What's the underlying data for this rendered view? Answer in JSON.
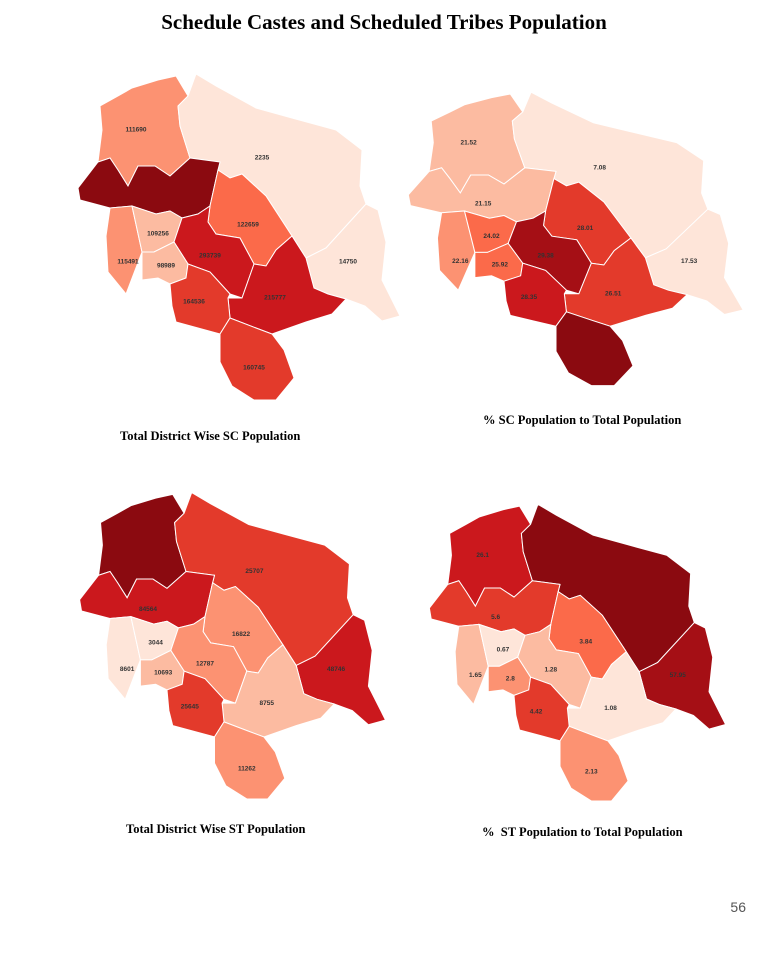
{
  "title": "Schedule Castes and Scheduled Tribes Population",
  "page_number": "56",
  "palette": [
    "#fee5d9",
    "#fcbba1",
    "#fc9272",
    "#fb6a4a",
    "#e33a2b",
    "#cb181d",
    "#a50f15",
    "#8b0a10"
  ],
  "maps": [
    {
      "id": "sc-total",
      "caption": "Total District Wise SC Population",
      "districts": [
        {
          "district": "Chamba",
          "value": "111690",
          "level": 2
        },
        {
          "district": "Lahaul & Spiti",
          "value": "2235",
          "level": 0
        },
        {
          "district": "Kangra",
          "value": "",
          "level": 7
        },
        {
          "district": "Kullu",
          "value": "122659",
          "level": 3
        },
        {
          "district": "Kinnaur",
          "value": "14750",
          "level": 0
        },
        {
          "district": "Una",
          "value": "115491",
          "level": 2
        },
        {
          "district": "Hamirpur",
          "value": "109256",
          "level": 1
        },
        {
          "district": "Mandi",
          "value": "293739",
          "level": 5
        },
        {
          "district": "Bilaspur",
          "value": "98989",
          "level": 1
        },
        {
          "district": "Shimla",
          "value": "215777",
          "level": 5
        },
        {
          "district": "Solan",
          "value": "164536",
          "level": 4
        },
        {
          "district": "Sirmaur",
          "value": "160745",
          "level": 4
        }
      ]
    },
    {
      "id": "sc-percent",
      "caption": "% SC Population to Total Population",
      "districts": [
        {
          "district": "Chamba",
          "value": "21.52",
          "level": 1
        },
        {
          "district": "Lahaul & Spiti",
          "value": "7.08",
          "level": 0
        },
        {
          "district": "Kangra",
          "value": "21.15",
          "level": 1
        },
        {
          "district": "Kullu",
          "value": "28.01",
          "level": 4
        },
        {
          "district": "Kinnaur",
          "value": "17.53",
          "level": 0
        },
        {
          "district": "Una",
          "value": "22.16",
          "level": 2
        },
        {
          "district": "Hamirpur",
          "value": "24.02",
          "level": 3
        },
        {
          "district": "Mandi",
          "value": "29.38",
          "level": 6
        },
        {
          "district": "Bilaspur",
          "value": "25.92",
          "level": 3
        },
        {
          "district": "Shimla",
          "value": "26.51",
          "level": 4
        },
        {
          "district": "Solan",
          "value": "28.35",
          "level": 5
        },
        {
          "district": "Sirmaur",
          "value": "",
          "level": 7
        }
      ]
    },
    {
      "id": "st-total",
      "caption": "Total District Wise ST Population",
      "districts": [
        {
          "district": "Chamba",
          "value": "",
          "level": 7
        },
        {
          "district": "Lahaul & Spiti",
          "value": "25707",
          "level": 4
        },
        {
          "district": "Kangra",
          "value": "84564",
          "level": 5
        },
        {
          "district": "Kullu",
          "value": "16822",
          "level": 2
        },
        {
          "district": "Kinnaur",
          "value": "48746",
          "level": 5
        },
        {
          "district": "Una",
          "value": "8601",
          "level": 0
        },
        {
          "district": "Hamirpur",
          "value": "3044",
          "level": 0
        },
        {
          "district": "Mandi",
          "value": "12787",
          "level": 2
        },
        {
          "district": "Bilaspur",
          "value": "10693",
          "level": 1
        },
        {
          "district": "Shimla",
          "value": "8755",
          "level": 1
        },
        {
          "district": "Solan",
          "value": "25645",
          "level": 4
        },
        {
          "district": "Sirmaur",
          "value": "11262",
          "level": 2
        }
      ]
    },
    {
      "id": "st-percent",
      "caption": "%  ST Population to Total Population",
      "districts": [
        {
          "district": "Chamba",
          "value": "26.1",
          "level": 5
        },
        {
          "district": "Lahaul & Spiti",
          "value": "",
          "level": 7
        },
        {
          "district": "Kangra",
          "value": "5.6",
          "level": 4
        },
        {
          "district": "Kullu",
          "value": "3.84",
          "level": 3
        },
        {
          "district": "Kinnaur",
          "value": "57.95",
          "level": 6
        },
        {
          "district": "Una",
          "value": "1.65",
          "level": 1
        },
        {
          "district": "Hamirpur",
          "value": "0.67",
          "level": 0
        },
        {
          "district": "Mandi",
          "value": "1.28",
          "level": 1
        },
        {
          "district": "Bilaspur",
          "value": "2.8",
          "level": 2
        },
        {
          "district": "Shimla",
          "value": "1.08",
          "level": 0
        },
        {
          "district": "Solan",
          "value": "4.42",
          "level": 4
        },
        {
          "district": "Sirmaur",
          "value": "2.13",
          "level": 2
        }
      ]
    }
  ]
}
